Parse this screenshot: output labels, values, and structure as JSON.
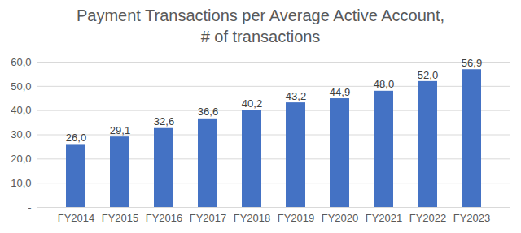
{
  "chart_data": {
    "type": "bar",
    "title": "Payment Transactions per Average Active Account,",
    "subtitle": "# of transactions",
    "categories": [
      "FY2014",
      "FY2015",
      "FY2016",
      "FY2017",
      "FY2018",
      "FY2019",
      "FY2020",
      "FY2021",
      "FY2022",
      "FY2023"
    ],
    "values": [
      26.0,
      29.1,
      32.6,
      36.6,
      40.2,
      43.2,
      44.9,
      48.0,
      52.0,
      56.9
    ],
    "value_labels": [
      "26,0",
      "29,1",
      "32,6",
      "36,6",
      "40,2",
      "43,2",
      "44,9",
      "48,0",
      "52,0",
      "56,9"
    ],
    "color": "#4472c4",
    "ylim": [
      0,
      60
    ],
    "yticks": [
      {
        "value": 0,
        "label": "-"
      },
      {
        "value": 10,
        "label": "10,0"
      },
      {
        "value": 20,
        "label": "20,0"
      },
      {
        "value": 30,
        "label": "30,0"
      },
      {
        "value": 40,
        "label": "40,0"
      },
      {
        "value": 50,
        "label": "50,0"
      },
      {
        "value": 60,
        "label": "60,0"
      }
    ],
    "grid": true,
    "data_labels": true
  }
}
